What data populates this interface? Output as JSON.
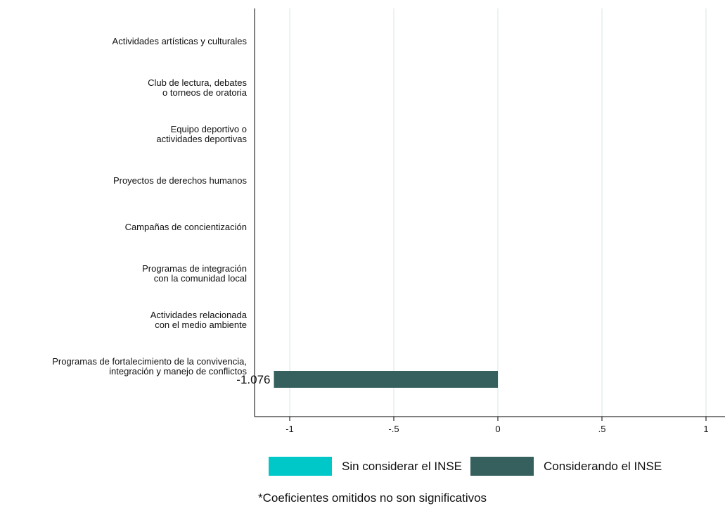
{
  "chart_data": {
    "type": "bar",
    "orientation": "horizontal",
    "categories": [
      [
        "Actividades artísticas y culturales"
      ],
      [
        "Club de lectura, debates",
        "o torneos de oratoria"
      ],
      [
        "Equipo deportivo o",
        "actividades deportivas"
      ],
      [
        "Proyectos de derechos humanos"
      ],
      [
        "Campañas de concientización"
      ],
      [
        "Programas de integración",
        "con la comunidad local"
      ],
      [
        "Actividades relacionada",
        "con el medio ambiente"
      ],
      [
        "Programas de fortalecimiento de la convivencia,",
        "integración y manejo de conflictos"
      ]
    ],
    "series": [
      {
        "name": "Sin considerar el INSE",
        "color": "#00c8c8",
        "values": [
          null,
          null,
          null,
          null,
          null,
          null,
          null,
          null
        ]
      },
      {
        "name": "Considerando el INSE",
        "color": "#35605e",
        "values": [
          null,
          null,
          null,
          null,
          null,
          null,
          null,
          -1.076
        ]
      }
    ],
    "data_labels": [
      "",
      "",
      "",
      "",
      "",
      "",
      "",
      "-1.076"
    ],
    "xticks": [
      -1,
      -0.5,
      0,
      0.5,
      1
    ],
    "xtick_labels": [
      "-1",
      "-.5",
      "0",
      ".5",
      "1"
    ],
    "xlim": [
      -1.18,
      1.02
    ],
    "grid": true,
    "legend_position": "bottom",
    "note": "*Coeficientes omitidos no son significativos"
  }
}
